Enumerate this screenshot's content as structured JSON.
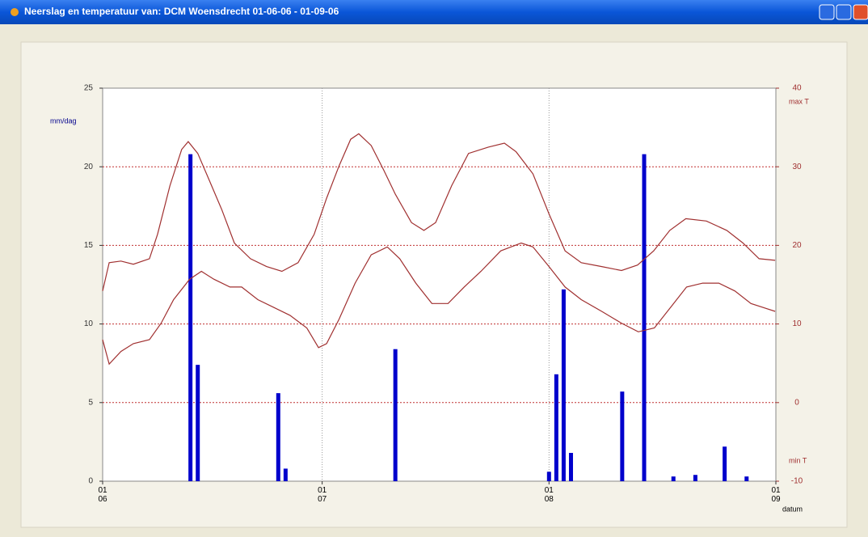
{
  "window": {
    "title": "Neerslag en temperatuur van: DCM Woensdrecht 01-06-06 - 01-09-06"
  },
  "chart_data": {
    "type": "bar-line",
    "ylabel": "mm/dag",
    "xlabel": "datum",
    "xlim": [
      0,
      92
    ],
    "xticks": [
      {
        "value": 0,
        "label": "01\n06"
      },
      {
        "value": 30,
        "label": "01\n07"
      },
      {
        "value": 61,
        "label": "01\n08"
      },
      {
        "value": 92,
        "label": "01\n09"
      }
    ],
    "ylim": [
      0,
      25
    ],
    "yticks": [
      0,
      5,
      10,
      15,
      20,
      25
    ],
    "y2lim": [
      -10,
      40
    ],
    "y2ticks": [
      -10,
      0,
      10,
      20,
      30,
      40
    ],
    "grid": true,
    "series": [
      {
        "type": "bar",
        "color": "#0000cc",
        "x": [
          12,
          13,
          24,
          25,
          40,
          61,
          62,
          63,
          64,
          71,
          74,
          78,
          81,
          85,
          88
        ],
        "values": [
          20.8,
          7.4,
          5.6,
          0.8,
          8.4,
          0.6,
          6.8,
          12.2,
          1.8,
          5.7,
          20.8,
          0.3,
          0.4,
          2.2,
          0.3
        ]
      },
      {
        "type": "line",
        "name": "max T",
        "color": "#a03030",
        "axis": "y2",
        "x": [
          0,
          0.9,
          2.5,
          4.2,
          6.4,
          7.5,
          9.2,
          10.8,
          11.7,
          13.0,
          14.7,
          16.3,
          18.0,
          20.2,
          22.4,
          24.5,
          26.7,
          28.9,
          30.6,
          32.3,
          33.9,
          35.0,
          36.7,
          38.4,
          40.0,
          42.2,
          43.9,
          45.5,
          47.7,
          50.0,
          52.7,
          54.9,
          56.5,
          58.8,
          61.0,
          63.2,
          65.4,
          68.2,
          70.9,
          73.1,
          75.3,
          77.5,
          79.7,
          82.5,
          85.3,
          87.5,
          89.7,
          91.9
        ],
        "values": [
          14.2,
          17.8,
          18,
          17.6,
          18.3,
          21.4,
          27.6,
          32.2,
          33.2,
          31.7,
          28,
          24.5,
          20.3,
          18.3,
          17.3,
          16.7,
          17.8,
          21.4,
          26,
          30.1,
          33.5,
          34.2,
          32.7,
          29.6,
          26.5,
          22.9,
          21.9,
          22.9,
          27.6,
          31.7,
          32.5,
          33,
          31.9,
          29.1,
          24,
          19.3,
          17.8,
          17.3,
          16.8,
          17.5,
          19.3,
          21.9,
          23.4,
          23.1,
          21.9,
          20.3,
          18.3,
          18.1
        ]
      },
      {
        "type": "line",
        "name": "min T",
        "color": "#a03030",
        "axis": "y2",
        "x": [
          0,
          0.9,
          2.5,
          4.2,
          6.4,
          8.0,
          9.7,
          11.9,
          13.5,
          15.2,
          17.4,
          19.0,
          21.2,
          23.4,
          25.6,
          27.9,
          29.5,
          30.6,
          32.3,
          34.5,
          36.7,
          38.9,
          40.6,
          42.8,
          45.0,
          47.2,
          49.4,
          51.7,
          54.4,
          57.2,
          58.8,
          61.0,
          63.2,
          65.4,
          68.2,
          70.9,
          73.2,
          75.4,
          77.6,
          79.8,
          82.0,
          84.2,
          86.4,
          88.6,
          91.9
        ],
        "values": [
          8,
          4.9,
          6.5,
          7.5,
          8,
          10.1,
          13.1,
          15.7,
          16.7,
          15.7,
          14.7,
          14.7,
          13.1,
          12.1,
          11.1,
          9.5,
          7,
          7.5,
          10.6,
          15.2,
          18.8,
          19.8,
          18.3,
          15.2,
          12.6,
          12.6,
          14.7,
          16.7,
          19.3,
          20.3,
          19.8,
          17.3,
          14.7,
          13.1,
          11.6,
          10.1,
          9,
          9.5,
          12.1,
          14.7,
          15.2,
          15.2,
          14.2,
          12.6,
          11.6
        ]
      }
    ]
  }
}
